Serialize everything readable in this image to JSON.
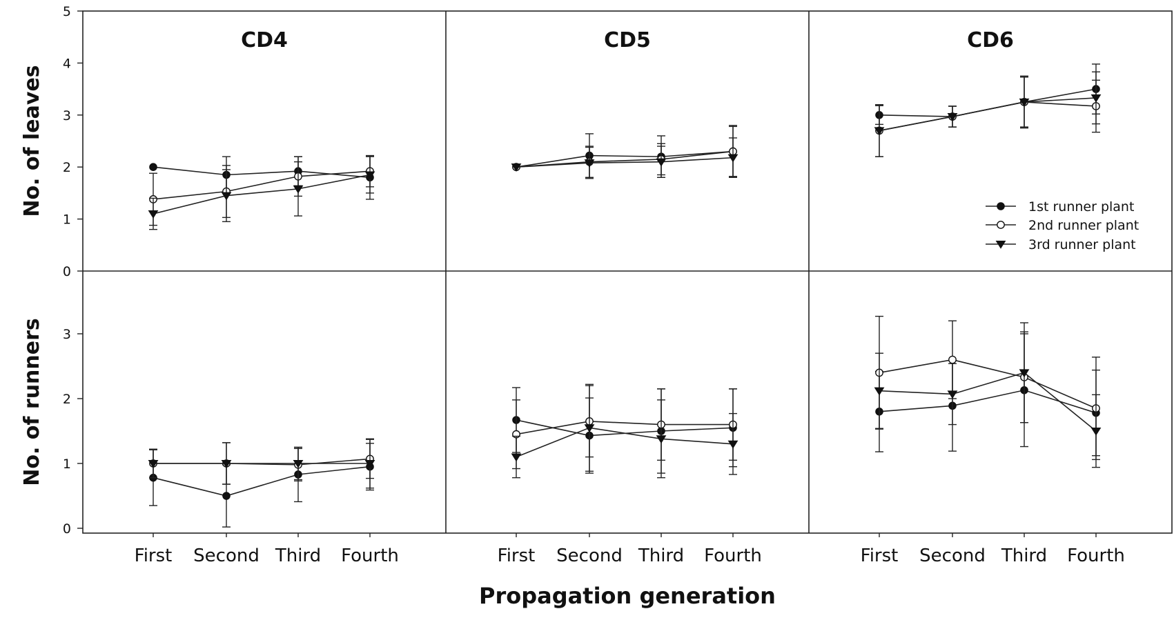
{
  "chart_data": {
    "type": "line",
    "layout": "small-multiples",
    "panel_titles": [
      "CD4",
      "CD5",
      "CD6"
    ],
    "categories": [
      "First",
      "Second",
      "Third",
      "Fourth"
    ],
    "xlabel": "Propagation generation",
    "legend": {
      "placement": "top-right panel",
      "entries": [
        "1st runner plant",
        "2nd runner plant",
        "3rd runner plant"
      ],
      "markers": [
        "filled-circle",
        "open-circle",
        "filled-triangle-down"
      ]
    },
    "rows": [
      {
        "ylabel": "No. of leaves",
        "ylim": [
          0,
          5
        ],
        "yticks": [
          0,
          1,
          2,
          3,
          4,
          5
        ],
        "panels": [
          {
            "title": "CD4",
            "series": [
              {
                "name": "1st runner plant",
                "values": [
                  2.0,
                  1.85,
                  1.92,
                  1.8
                ],
                "err": [
                  0.0,
                  0.35,
                  0.28,
                  0.42
                ]
              },
              {
                "name": "2nd runner plant",
                "values": [
                  1.38,
                  1.53,
                  1.82,
                  1.92
                ],
                "err": [
                  0.5,
                  0.5,
                  0.38,
                  0.3
                ]
              },
              {
                "name": "3rd runner plant",
                "values": [
                  1.1,
                  1.45,
                  1.58,
                  1.85
                ],
                "err": [
                  0.3,
                  0.5,
                  0.52,
                  0.35
                ]
              }
            ]
          },
          {
            "title": "CD5",
            "series": [
              {
                "name": "1st runner plant",
                "values": [
                  2.0,
                  2.22,
                  2.2,
                  2.3
                ],
                "err": [
                  0.0,
                  0.42,
                  0.4,
                  0.48
                ]
              },
              {
                "name": "2nd runner plant",
                "values": [
                  2.0,
                  2.1,
                  2.15,
                  2.3
                ],
                "err": [
                  0.0,
                  0.3,
                  0.3,
                  0.5
                ]
              },
              {
                "name": "3rd runner plant",
                "values": [
                  2.0,
                  2.08,
                  2.1,
                  2.18
                ],
                "err": [
                  0.0,
                  0.3,
                  0.3,
                  0.38
                ]
              }
            ]
          },
          {
            "title": "CD6",
            "series": [
              {
                "name": "1st runner plant",
                "values": [
                  3.0,
                  2.97,
                  3.25,
                  3.5
                ],
                "err": [
                  0.18,
                  0.2,
                  0.5,
                  0.48
                ]
              },
              {
                "name": "2nd runner plant",
                "values": [
                  2.7,
                  2.97,
                  3.25,
                  3.17
                ],
                "err": [
                  0.5,
                  0.2,
                  0.48,
                  0.5
                ]
              },
              {
                "name": "3rd runner plant",
                "values": [
                  2.7,
                  2.97,
                  3.25,
                  3.33
                ],
                "err": [
                  0.5,
                  0.2,
                  0.48,
                  0.5
                ]
              }
            ]
          }
        ]
      },
      {
        "ylabel": "No. of runners",
        "ylim": [
          0,
          4
        ],
        "yticks": [
          0,
          1,
          2,
          3
        ],
        "panels": [
          {
            "title": "CD4",
            "series": [
              {
                "name": "1st runner plant",
                "values": [
                  0.78,
                  0.5,
                  0.83,
                  0.95
                ],
                "err": [
                  0.43,
                  0.48,
                  0.42,
                  0.36
                ]
              },
              {
                "name": "2nd runner plant",
                "values": [
                  1.0,
                  1.0,
                  0.98,
                  1.07
                ],
                "err": [
                  0.22,
                  0.32,
                  0.25,
                  0.3
                ]
              },
              {
                "name": "3rd runner plant",
                "values": [
                  1.0,
                  1.0,
                  1.0,
                  1.0
                ],
                "err": [
                  0.22,
                  0.32,
                  0.25,
                  0.38
                ]
              }
            ]
          },
          {
            "title": "CD5",
            "series": [
              {
                "name": "1st runner plant",
                "values": [
                  1.67,
                  1.43,
                  1.5,
                  1.55
                ],
                "err": [
                  0.5,
                  0.58,
                  0.65,
                  0.6
                ]
              },
              {
                "name": "2nd runner plant",
                "values": [
                  1.45,
                  1.65,
                  1.6,
                  1.6
                ],
                "err": [
                  0.53,
                  0.55,
                  0.55,
                  0.55
                ]
              },
              {
                "name": "3rd runner plant",
                "values": [
                  1.1,
                  1.55,
                  1.38,
                  1.3
                ],
                "err": [
                  0.32,
                  0.67,
                  0.6,
                  0.47
                ]
              }
            ]
          },
          {
            "title": "CD6",
            "series": [
              {
                "name": "1st runner plant",
                "values": [
                  1.8,
                  1.89,
                  2.13,
                  1.78
                ],
                "err": [
                  0.62,
                  0.7,
                  0.87,
                  0.66
                ]
              },
              {
                "name": "2nd runner plant",
                "values": [
                  2.4,
                  2.6,
                  2.33,
                  1.85
                ],
                "err": [
                  0.87,
                  0.6,
                  0.7,
                  0.79
                ]
              },
              {
                "name": "3rd runner plant",
                "values": [
                  2.12,
                  2.07,
                  2.4,
                  1.5
                ],
                "err": [
                  0.58,
                  0.47,
                  0.77,
                  0.56
                ]
              }
            ]
          }
        ]
      }
    ]
  }
}
